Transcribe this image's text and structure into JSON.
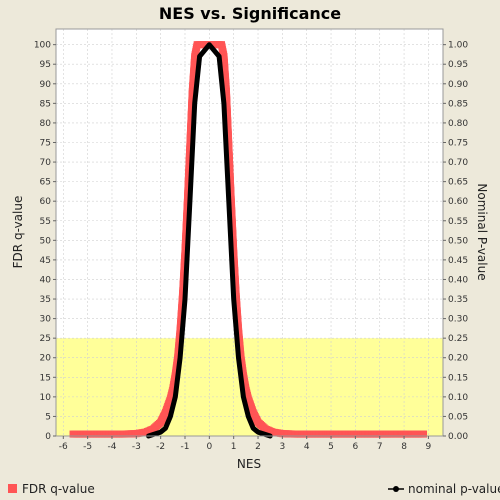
{
  "chart_data": {
    "type": "scatter",
    "title": "NES vs. Significance",
    "xlabel": "NES",
    "ylabel_left": "FDR q-value",
    "ylabel_right": "Nominal P-value",
    "xlim": [
      -6.3,
      9.6
    ],
    "ylim_left": [
      0,
      104
    ],
    "ylim_right": [
      0,
      1.04
    ],
    "x_ticks": [
      -6,
      -5,
      -4,
      -3,
      -2,
      -1,
      0,
      1,
      2,
      3,
      4,
      5,
      6,
      7,
      8,
      9
    ],
    "y_ticks_left": [
      0,
      5,
      10,
      15,
      20,
      25,
      30,
      35,
      40,
      45,
      50,
      55,
      60,
      65,
      70,
      75,
      80,
      85,
      90,
      95,
      100
    ],
    "y_ticks_right": [
      "0.00",
      "0.05",
      "0.10",
      "0.15",
      "0.20",
      "0.25",
      "0.30",
      "0.35",
      "0.40",
      "0.45",
      "0.50",
      "0.55",
      "0.60",
      "0.65",
      "0.70",
      "0.75",
      "0.80",
      "0.85",
      "0.90",
      "0.95",
      "1.00"
    ],
    "grid": true,
    "highlight_band": {
      "y_from": 0,
      "y_to": 25,
      "color": "#ffff99"
    },
    "series": [
      {
        "name": "FDR q-value",
        "axis": "left",
        "color": "#ff5555",
        "marker": "square",
        "x": [
          -5.6,
          -5.4,
          -4.5,
          -4.0,
          -3.5,
          -3.0,
          -2.6,
          -2.3,
          -2.0,
          -1.8,
          -1.6,
          -1.5,
          -1.4,
          -1.3,
          -1.2,
          -1.1,
          -1.0,
          -0.9,
          -0.8,
          -0.7,
          -0.6,
          -0.5,
          -0.3,
          0.0,
          0.3,
          0.5,
          0.6,
          0.7,
          0.8,
          0.9,
          1.0,
          1.1,
          1.2,
          1.3,
          1.4,
          1.5,
          1.6,
          1.8,
          2.0,
          2.3,
          2.6,
          3.0,
          3.5,
          4.0,
          5.0,
          6.0,
          7.0,
          7.5,
          7.8,
          8.2,
          8.8
        ],
        "y": [
          0.5,
          0.5,
          0.5,
          0.5,
          0.5,
          0.6,
          1.0,
          1.8,
          3.5,
          6.0,
          9.5,
          12.0,
          15.5,
          20.0,
          27.0,
          36.0,
          47.0,
          60.0,
          74.0,
          88.0,
          97.0,
          100.0,
          100.0,
          100.0,
          100.0,
          100.0,
          97.0,
          88.0,
          74.0,
          60.0,
          47.0,
          36.0,
          27.0,
          20.0,
          15.5,
          12.0,
          9.5,
          6.0,
          3.5,
          1.8,
          1.0,
          0.6,
          0.5,
          0.5,
          0.5,
          0.5,
          0.5,
          0.5,
          0.5,
          0.5,
          0.5
        ]
      },
      {
        "name": "nominal p-value",
        "axis": "right",
        "color": "#000000",
        "marker": "line",
        "x": [
          -2.5,
          -2.0,
          -1.8,
          -1.6,
          -1.4,
          -1.2,
          -1.0,
          -0.8,
          -0.6,
          -0.4,
          0.0,
          0.4,
          0.6,
          0.8,
          1.0,
          1.2,
          1.4,
          1.6,
          1.8,
          2.0,
          2.5
        ],
        "y": [
          0.0,
          0.01,
          0.02,
          0.05,
          0.1,
          0.2,
          0.35,
          0.6,
          0.85,
          0.97,
          1.0,
          0.97,
          0.85,
          0.6,
          0.35,
          0.2,
          0.1,
          0.05,
          0.02,
          0.01,
          0.0
        ]
      }
    ],
    "legend": {
      "placement": "bottom",
      "items": [
        {
          "label": "FDR q-value",
          "color": "#ff5555",
          "marker": "square"
        },
        {
          "label": "nominal p-value",
          "color": "#000000",
          "marker": "line"
        }
      ]
    }
  }
}
